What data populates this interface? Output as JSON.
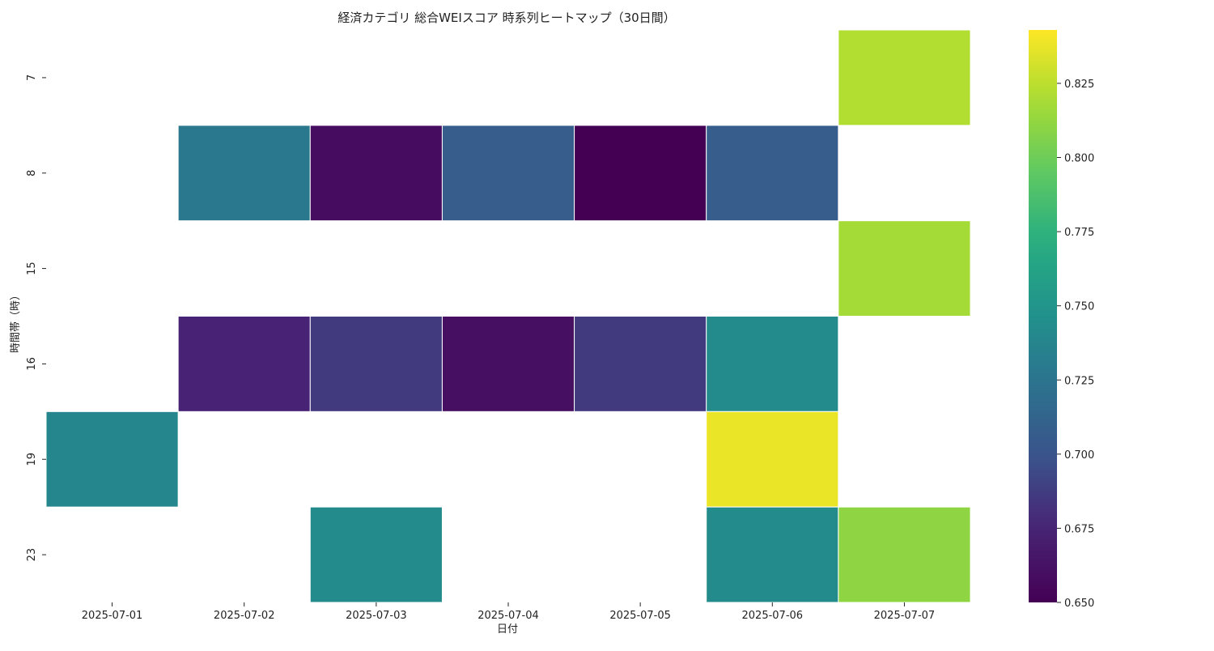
{
  "chart_data": {
    "type": "heatmap",
    "title": "経済カテゴリ 総合WEIスコア 時系列ヒートマップ（30日間）",
    "xlabel": "日付",
    "ylabel": "時間帯（時）",
    "x": [
      "2025-07-01",
      "2025-07-02",
      "2025-07-03",
      "2025-07-04",
      "2025-07-05",
      "2025-07-06",
      "2025-07-07"
    ],
    "y": [
      "7",
      "8",
      "15",
      "16",
      "19",
      "23"
    ],
    "values": [
      [
        null,
        null,
        null,
        null,
        null,
        null,
        0.822
      ],
      [
        null,
        0.728,
        0.658,
        0.707,
        0.65,
        0.707,
        null
      ],
      [
        null,
        null,
        null,
        null,
        null,
        null,
        0.818
      ],
      [
        null,
        0.674,
        0.686,
        0.66,
        0.686,
        0.742,
        null
      ],
      [
        0.738,
        null,
        null,
        null,
        null,
        0.838,
        null
      ],
      [
        null,
        null,
        0.742,
        null,
        null,
        0.742,
        0.811
      ]
    ],
    "colormap": "viridis",
    "missing_color": "#ffffff",
    "grid_line_color": "#ffffff",
    "colorbar": {
      "range": [
        0.65,
        0.843
      ],
      "ticks": [
        0.65,
        0.675,
        0.7,
        0.725,
        0.75,
        0.775,
        0.8,
        0.825
      ],
      "tick_labels": [
        "0.650",
        "0.675",
        "0.700",
        "0.725",
        "0.750",
        "0.775",
        "0.800",
        "0.825"
      ],
      "placement": "right"
    },
    "legend": "none"
  }
}
